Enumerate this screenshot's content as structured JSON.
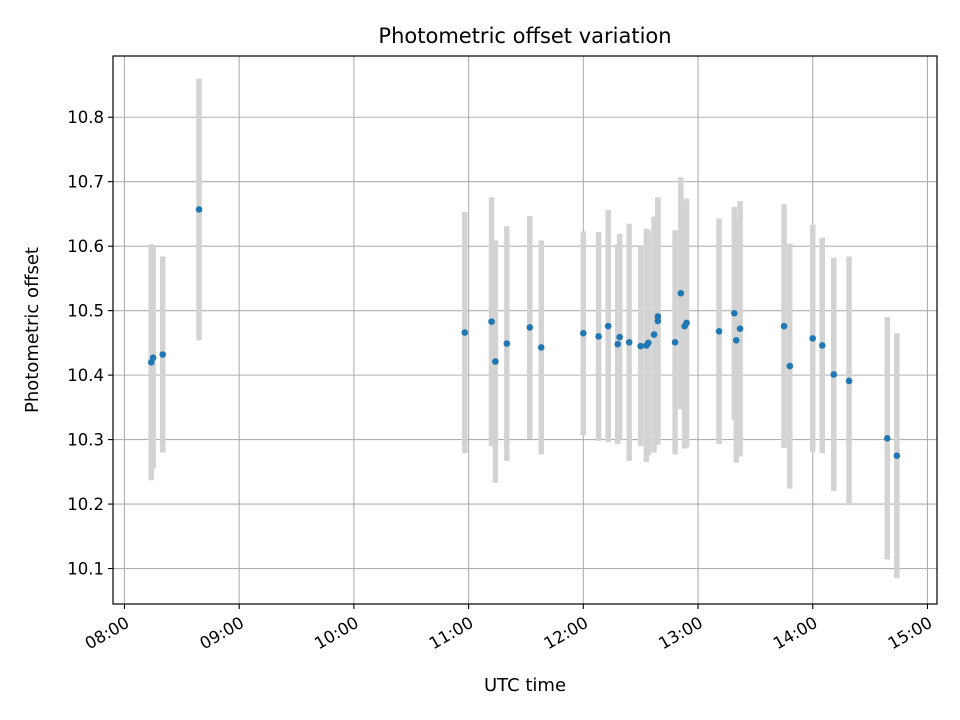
{
  "chart_data": {
    "type": "scatter",
    "title": "Photometric offset variation",
    "xlabel": "UTC time",
    "ylabel": "Photometric offset",
    "xlim": [
      "07:54",
      "15:05"
    ],
    "ylim": [
      10.045,
      10.895
    ],
    "x_ticks": [
      "08:00",
      "09:00",
      "10:00",
      "11:00",
      "12:00",
      "13:00",
      "14:00",
      "15:00"
    ],
    "y_ticks": [
      10.1,
      10.2,
      10.3,
      10.4,
      10.5,
      10.6,
      10.7,
      10.8
    ],
    "y_tick_labels": [
      "10.1",
      "10.2",
      "10.3",
      "10.4",
      "10.5",
      "10.6",
      "10.7",
      "10.8"
    ],
    "grid": true,
    "point_color": "#1f77b4",
    "errorbar_color": "#d3d3d3",
    "points": [
      {
        "t": "08:14",
        "y": 10.42,
        "err": 0.183
      },
      {
        "t": "08:15",
        "y": 10.427,
        "err": 0.172
      },
      {
        "t": "08:20",
        "y": 10.432,
        "err": 0.152
      },
      {
        "t": "08:39",
        "y": 10.657,
        "err": 0.203
      },
      {
        "t": "10:58",
        "y": 10.466,
        "err": 0.187
      },
      {
        "t": "11:12",
        "y": 10.483,
        "err": 0.193
      },
      {
        "t": "11:14",
        "y": 10.421,
        "err": 0.188
      },
      {
        "t": "11:20",
        "y": 10.449,
        "err": 0.182
      },
      {
        "t": "11:32",
        "y": 10.474,
        "err": 0.173
      },
      {
        "t": "11:38",
        "y": 10.443,
        "err": 0.166
      },
      {
        "t": "12:00",
        "y": 10.465,
        "err": 0.158
      },
      {
        "t": "12:08",
        "y": 10.46,
        "err": 0.162
      },
      {
        "t": "12:13",
        "y": 10.476,
        "err": 0.18
      },
      {
        "t": "12:18",
        "y": 10.448,
        "err": 0.155
      },
      {
        "t": "12:19",
        "y": 10.459,
        "err": 0.16
      },
      {
        "t": "12:24",
        "y": 10.451,
        "err": 0.184
      },
      {
        "t": "12:30",
        "y": 10.445,
        "err": 0.155
      },
      {
        "t": "12:33",
        "y": 10.446,
        "err": 0.181
      },
      {
        "t": "12:34",
        "y": 10.45,
        "err": 0.174
      },
      {
        "t": "12:37",
        "y": 10.463,
        "err": 0.183
      },
      {
        "t": "12:39",
        "y": 10.484,
        "err": 0.192
      },
      {
        "t": "12:39",
        "y": 10.491,
        "err": 0.184
      },
      {
        "t": "12:48",
        "y": 10.451,
        "err": 0.174
      },
      {
        "t": "12:51",
        "y": 10.527,
        "err": 0.18
      },
      {
        "t": "12:53",
        "y": 10.476,
        "err": 0.19
      },
      {
        "t": "12:54",
        "y": 10.481,
        "err": 0.193
      },
      {
        "t": "13:11",
        "y": 10.468,
        "err": 0.175
      },
      {
        "t": "13:19",
        "y": 10.496,
        "err": 0.165
      },
      {
        "t": "13:20",
        "y": 10.454,
        "err": 0.19
      },
      {
        "t": "13:22",
        "y": 10.472,
        "err": 0.198
      },
      {
        "t": "13:45",
        "y": 10.476,
        "err": 0.189
      },
      {
        "t": "13:48",
        "y": 10.414,
        "err": 0.19
      },
      {
        "t": "14:00",
        "y": 10.457,
        "err": 0.176
      },
      {
        "t": "14:05",
        "y": 10.446,
        "err": 0.167
      },
      {
        "t": "14:11",
        "y": 10.401,
        "err": 0.181
      },
      {
        "t": "14:19",
        "y": 10.391,
        "err": 0.193
      },
      {
        "t": "14:39",
        "y": 10.302,
        "err": 0.188
      },
      {
        "t": "14:44",
        "y": 10.275,
        "err": 0.19
      }
    ]
  }
}
